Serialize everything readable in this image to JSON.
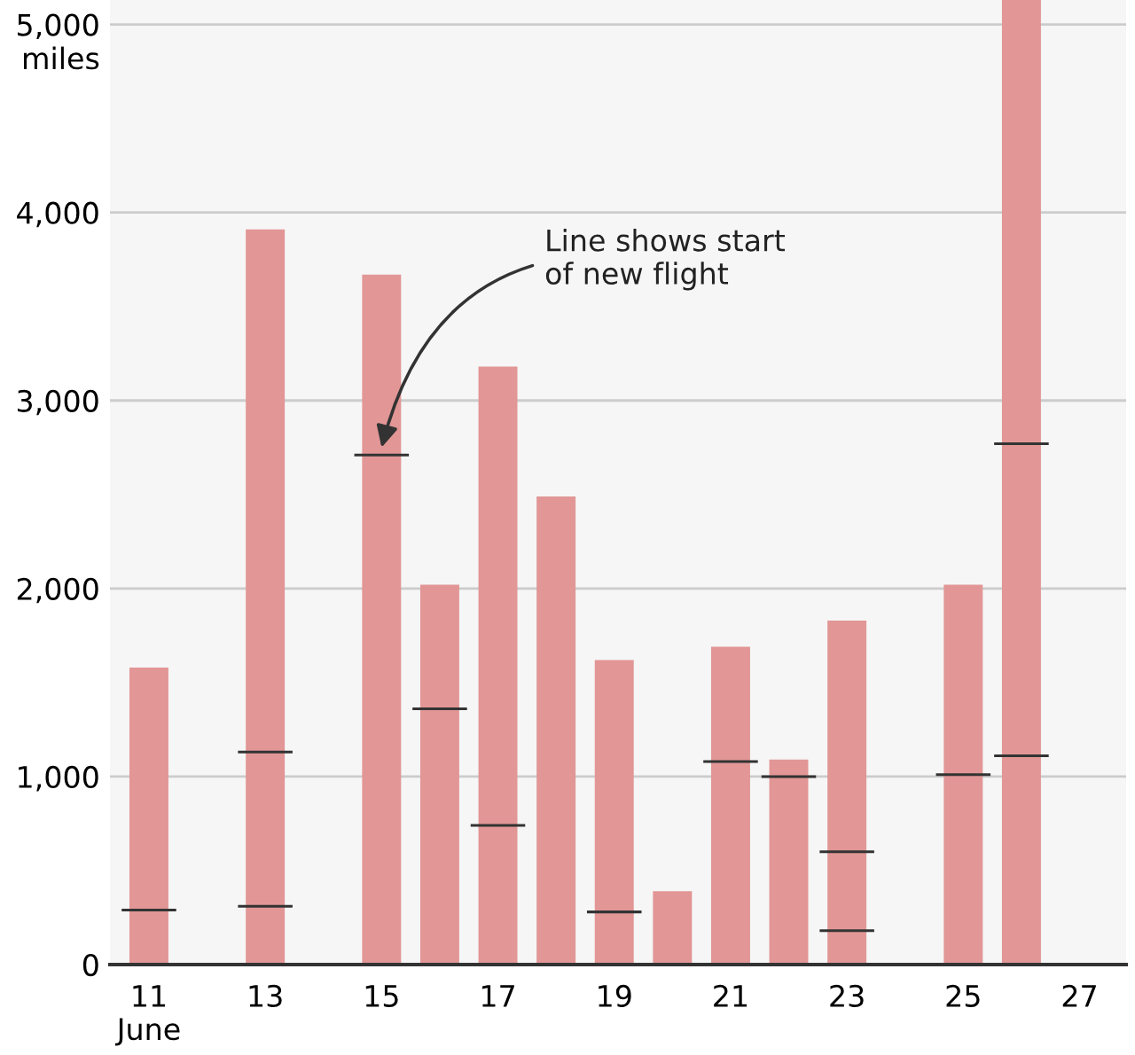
{
  "chart_data": {
    "type": "bar",
    "stacked": true,
    "ylabel": "miles",
    "categories": [
      "11\nJune",
      null,
      "13",
      null,
      "15",
      null,
      "17",
      null,
      "19",
      null,
      "21",
      null,
      "23",
      null,
      "25",
      null,
      "27"
    ],
    "series": [
      {
        "color": "#e29696",
        "values": [
          290,
          null,
          310,
          null,
          2710,
          1360,
          740,
          2490,
          280,
          390,
          1080,
          1000,
          180,
          null,
          1010,
          1110,
          null
        ]
      },
      {
        "color": "#e29696",
        "values": [
          1290,
          null,
          820,
          null,
          960,
          660,
          2440,
          null,
          1340,
          null,
          610,
          90,
          420,
          null,
          1010,
          1660,
          null
        ]
      },
      {
        "color": "#e29696",
        "values": [
          null,
          null,
          2780,
          null,
          null,
          null,
          null,
          null,
          null,
          null,
          null,
          null,
          1230,
          null,
          null,
          2360,
          null
        ]
      }
    ],
    "ylim": [
      0,
      5130
    ],
    "yticks": [
      0,
      {
        "value": 1000,
        "label": "1,000"
      },
      {
        "value": 2000,
        "label": "2,000"
      },
      {
        "value": 3000,
        "label": "3,000"
      },
      {
        "value": 4000,
        "label": "4,000"
      },
      {
        "value": 5000,
        "label": "5,000"
      }
    ],
    "grid": "y",
    "annotations": [
      {
        "text": "Line shows start\nof new flight",
        "x": "15",
        "y": 2750
      }
    ]
  }
}
